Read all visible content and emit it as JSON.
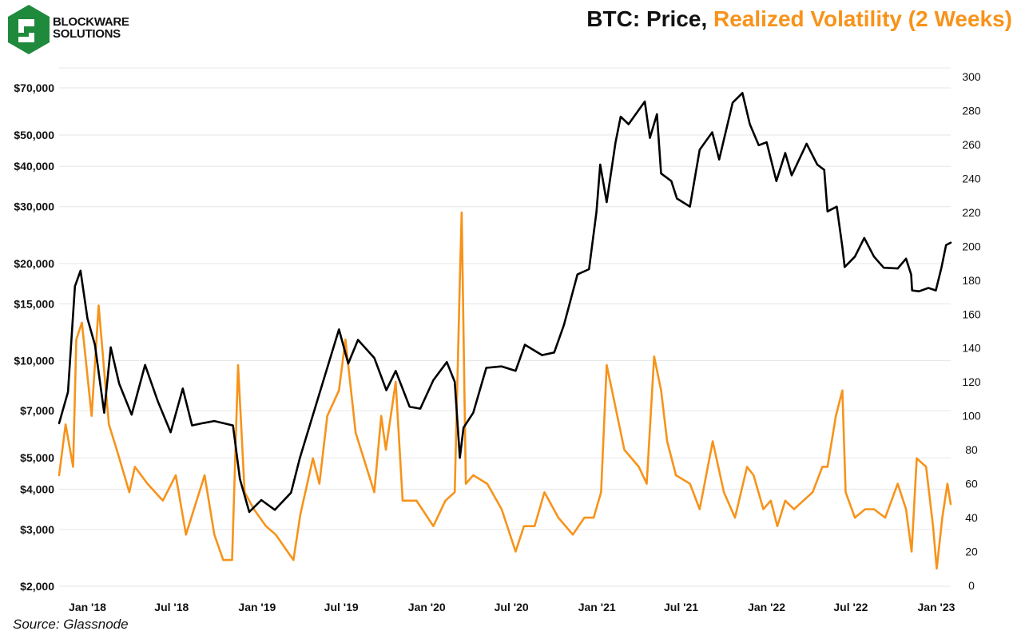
{
  "brand": {
    "name_line1": "BLOCKWARE",
    "name_line2": "SOLUTIONS"
  },
  "colors": {
    "price": "#000000",
    "volatility": "#f7931a",
    "grid": "#e6e6e6",
    "logo": "#1f8a3c"
  },
  "source": "Source: Glassnode",
  "chart_data": {
    "type": "line",
    "title_part1": "BTC: Price,",
    "title_part2": "Realized Volatility (2 Weeks)",
    "x_ticks": [
      "Jan '18",
      "Jul '18",
      "Jan '19",
      "Jul '19",
      "Jan '20",
      "Jul '20",
      "Jan '21",
      "Jul '21",
      "Jan '22",
      "Jul '22",
      "Jan '23"
    ],
    "x_range": [
      "2017-11-01",
      "2023-02-01"
    ],
    "y_left": {
      "scale": "log",
      "ylim": [
        2000,
        70000
      ],
      "ticks": [
        2000,
        3000,
        4000,
        5000,
        7000,
        10000,
        15000,
        20000,
        30000,
        40000,
        50000,
        70000
      ],
      "tick_labels": [
        "$2,000",
        "$3,000",
        "$4,000",
        "$5,000",
        "$7,000",
        "$10,000",
        "$15,000",
        "$20,000",
        "$30,000",
        "$40,000",
        "$50,000",
        "$70,000"
      ]
    },
    "y_right": {
      "scale": "linear",
      "ylim": [
        0,
        300
      ],
      "ticks": [
        0,
        20,
        40,
        60,
        80,
        100,
        120,
        140,
        160,
        180,
        200,
        220,
        240,
        260,
        280,
        300
      ]
    },
    "grid": true,
    "series": [
      {
        "axis": "left",
        "color": "#000000",
        "x": [
          "2017-11-01",
          "2017-11-20",
          "2017-12-05",
          "2017-12-17",
          "2018-01-01",
          "2018-01-17",
          "2018-02-06",
          "2018-02-20",
          "2018-03-10",
          "2018-04-06",
          "2018-05-05",
          "2018-06-01",
          "2018-06-29",
          "2018-07-25",
          "2018-08-14",
          "2018-09-05",
          "2018-10-01",
          "2018-11-10",
          "2018-11-25",
          "2018-12-15",
          "2019-01-10",
          "2019-02-08",
          "2019-03-15",
          "2019-04-03",
          "2019-05-15",
          "2019-06-26",
          "2019-07-16",
          "2019-08-06",
          "2019-09-10",
          "2019-10-06",
          "2019-10-26",
          "2019-11-25",
          "2019-12-18",
          "2020-01-15",
          "2020-02-13",
          "2020-03-01",
          "2020-03-12",
          "2020-03-20",
          "2020-04-10",
          "2020-05-08",
          "2020-06-10",
          "2020-07-10",
          "2020-07-30",
          "2020-09-05",
          "2020-10-01",
          "2020-10-22",
          "2020-11-20",
          "2020-12-15",
          "2020-12-31",
          "2021-01-08",
          "2021-01-22",
          "2021-02-10",
          "2021-02-21",
          "2021-03-10",
          "2021-04-14",
          "2021-04-25",
          "2021-05-10",
          "2021-05-19",
          "2021-06-10",
          "2021-06-22",
          "2021-07-20",
          "2021-08-10",
          "2021-09-06",
          "2021-09-21",
          "2021-10-20",
          "2021-11-10",
          "2021-11-26",
          "2021-12-15",
          "2022-01-01",
          "2022-01-22",
          "2022-02-10",
          "2022-02-24",
          "2022-03-28",
          "2022-04-20",
          "2022-05-05",
          "2022-05-12",
          "2022-06-01",
          "2022-06-13",
          "2022-06-18",
          "2022-07-10",
          "2022-07-30",
          "2022-08-20",
          "2022-09-10",
          "2022-10-10",
          "2022-10-28",
          "2022-11-08",
          "2022-11-10",
          "2022-11-25",
          "2022-12-15",
          "2022-12-31",
          "2023-01-12",
          "2023-01-22",
          "2023-02-01"
        ],
        "y": [
          6400,
          8000,
          17000,
          19000,
          13500,
          11200,
          6900,
          11000,
          8500,
          6800,
          9700,
          7500,
          6000,
          8200,
          6300,
          6400,
          6500,
          6300,
          4300,
          3400,
          3700,
          3450,
          3900,
          5000,
          7900,
          12500,
          9800,
          11600,
          10200,
          8100,
          9300,
          7200,
          7100,
          8700,
          9900,
          8600,
          5000,
          6200,
          6900,
          9500,
          9600,
          9300,
          11200,
          10400,
          10600,
          12900,
          18500,
          19200,
          28900,
          40500,
          31000,
          47500,
          57000,
          54000,
          63500,
          49000,
          58000,
          38000,
          36000,
          31800,
          30000,
          45000,
          51000,
          42000,
          63000,
          67500,
          54000,
          46500,
          47500,
          36000,
          44000,
          37500,
          47000,
          40500,
          39000,
          29000,
          30000,
          22500,
          19500,
          21000,
          24000,
          21000,
          19400,
          19300,
          20700,
          18500,
          16500,
          16400,
          16800,
          16500,
          19400,
          22800,
          23200
        ]
      },
      {
        "axis": "right",
        "color": "#f7931a",
        "x": [
          "2017-11-01",
          "2017-11-15",
          "2017-12-01",
          "2017-12-08",
          "2017-12-20",
          "2018-01-10",
          "2018-01-25",
          "2018-02-08",
          "2018-02-16",
          "2018-03-05",
          "2018-04-01",
          "2018-04-13",
          "2018-05-10",
          "2018-06-12",
          "2018-07-10",
          "2018-08-01",
          "2018-09-10",
          "2018-10-01",
          "2018-10-20",
          "2018-11-08",
          "2018-11-21",
          "2018-12-05",
          "2018-12-25",
          "2019-01-20",
          "2019-02-10",
          "2019-03-20",
          "2019-04-04",
          "2019-05-01",
          "2019-05-15",
          "2019-06-01",
          "2019-06-26",
          "2019-07-10",
          "2019-08-01",
          "2019-09-10",
          "2019-09-25",
          "2019-10-05",
          "2019-10-26",
          "2019-11-10",
          "2019-12-10",
          "2020-01-15",
          "2020-02-10",
          "2020-03-01",
          "2020-03-12",
          "2020-03-16",
          "2020-03-25",
          "2020-04-10",
          "2020-05-10",
          "2020-06-10",
          "2020-07-10",
          "2020-07-28",
          "2020-08-20",
          "2020-09-10",
          "2020-10-10",
          "2020-11-10",
          "2020-12-05",
          "2020-12-25",
          "2021-01-10",
          "2021-01-22",
          "2021-02-10",
          "2021-03-01",
          "2021-04-01",
          "2021-04-18",
          "2021-05-04",
          "2021-05-19",
          "2021-06-01",
          "2021-06-20",
          "2021-07-20",
          "2021-08-10",
          "2021-09-07",
          "2021-10-01",
          "2021-10-25",
          "2021-11-20",
          "2021-12-04",
          "2021-12-25",
          "2022-01-10",
          "2022-01-24",
          "2022-02-10",
          "2022-03-01",
          "2022-04-10",
          "2022-05-01",
          "2022-05-12",
          "2022-05-30",
          "2022-06-13",
          "2022-06-20",
          "2022-07-10",
          "2022-08-01",
          "2022-08-20",
          "2022-09-13",
          "2022-10-10",
          "2022-10-28",
          "2022-11-09",
          "2022-11-20",
          "2022-12-10",
          "2022-12-25",
          "2023-01-02",
          "2023-01-14",
          "2023-01-25",
          "2023-02-01"
        ],
        "y": [
          65,
          95,
          70,
          145,
          155,
          100,
          165,
          120,
          95,
          80,
          55,
          70,
          60,
          50,
          65,
          30,
          65,
          30,
          15,
          15,
          130,
          55,
          45,
          35,
          30,
          15,
          42,
          75,
          60,
          100,
          115,
          145,
          90,
          55,
          100,
          80,
          120,
          50,
          50,
          35,
          50,
          55,
          180,
          220,
          60,
          65,
          60,
          45,
          20,
          35,
          35,
          55,
          40,
          30,
          40,
          40,
          55,
          130,
          105,
          80,
          70,
          60,
          135,
          115,
          85,
          65,
          60,
          45,
          85,
          55,
          40,
          70,
          65,
          45,
          50,
          35,
          50,
          45,
          55,
          70,
          70,
          100,
          115,
          55,
          40,
          45,
          45,
          40,
          60,
          45,
          20,
          75,
          70,
          35,
          10,
          40,
          60,
          48
        ]
      }
    ]
  }
}
